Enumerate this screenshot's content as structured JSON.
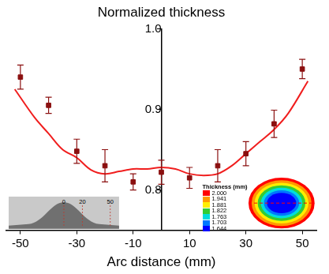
{
  "chart_data": {
    "type": "scatter",
    "title": "Normalized thickness",
    "x_label": "Arc distance (mm)",
    "xlim": [
      -55,
      55
    ],
    "xticks": [
      -50,
      -30,
      -10,
      10,
      30,
      50
    ],
    "ylim": [
      0.75,
      1.0
    ],
    "yticks": [
      0.8,
      0.9,
      {
        "value": 1.0,
        "label": "1.0"
      }
    ],
    "grid": false,
    "series": [
      {
        "type": "scatter",
        "marker": "square",
        "color": "#8b1010",
        "x": [
          -50,
          -40,
          -30,
          -20,
          -10,
          0,
          10,
          20,
          30,
          40,
          50
        ],
        "values": [
          0.94,
          0.905,
          0.848,
          0.83,
          0.81,
          0.822,
          0.815,
          0.83,
          0.845,
          0.882,
          0.95
        ],
        "errors": [
          0.015,
          0.01,
          0.015,
          0.02,
          0.01,
          0.015,
          0.013,
          0.02,
          0.015,
          0.017,
          0.012
        ]
      },
      {
        "type": "line",
        "line_style": "solid",
        "color": "#f01e1e",
        "x": [
          -52,
          -45,
          -40,
          -35,
          -30,
          -25,
          -20,
          -15,
          -10,
          -5,
          0,
          5,
          10,
          15,
          20,
          25,
          30,
          35,
          40,
          45,
          52
        ],
        "values": [
          0.925,
          0.89,
          0.87,
          0.85,
          0.84,
          0.825,
          0.82,
          0.823,
          0.826,
          0.826,
          0.828,
          0.826,
          0.82,
          0.818,
          0.82,
          0.83,
          0.845,
          0.86,
          0.875,
          0.895,
          0.935
        ]
      }
    ],
    "insets": {
      "photo": {
        "ticks": [
          0,
          20,
          50
        ]
      },
      "colorbar": {
        "title": "Thickness (mm)",
        "ticks": [
          {
            "value": 2.0,
            "label": "2.000"
          },
          {
            "value": 1.941,
            "label": "1.941"
          },
          {
            "value": 1.881,
            "label": "1.881"
          },
          {
            "value": 1.822,
            "label": "1.822"
          },
          {
            "value": 1.763,
            "label": "1.763"
          },
          {
            "value": 1.703,
            "label": "1.703"
          },
          {
            "value": 1.644,
            "label": "1.644"
          }
        ],
        "colors": [
          "#ff0000",
          "#ff9900",
          "#ffee00",
          "#33cc33",
          "#00dddd",
          "#0077ff",
          "#0000ff"
        ]
      }
    }
  }
}
